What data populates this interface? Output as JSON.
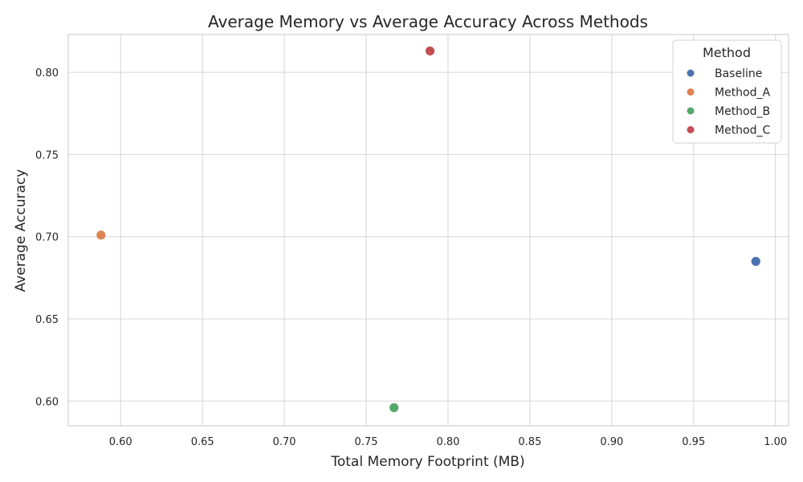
{
  "chart_data": {
    "type": "scatter",
    "title": "Average Memory vs Average Accuracy Across Methods",
    "xlabel": "Total Memory Footprint (MB)",
    "ylabel": "Average Accuracy",
    "xlim": [
      0.568,
      1.008
    ],
    "ylim": [
      0.585,
      0.823
    ],
    "xticks": [
      0.6,
      0.65,
      0.7,
      0.75,
      0.8,
      0.85,
      0.9,
      0.95,
      1.0
    ],
    "xtick_labels": [
      "0.60",
      "0.65",
      "0.70",
      "0.75",
      "0.80",
      "0.85",
      "0.90",
      "0.95",
      "1.00"
    ],
    "yticks": [
      0.6,
      0.65,
      0.7,
      0.75,
      0.8
    ],
    "ytick_labels": [
      "0.60",
      "0.65",
      "0.70",
      "0.75",
      "0.80"
    ],
    "grid": true,
    "legend": {
      "title": "Method",
      "position": "top-right"
    },
    "series": [
      {
        "name": "Baseline",
        "color": "#4c72b0",
        "x": [
          0.988
        ],
        "y": [
          0.685
        ]
      },
      {
        "name": "Method_A",
        "color": "#dd8452",
        "x": [
          0.588
        ],
        "y": [
          0.701
        ]
      },
      {
        "name": "Method_B",
        "color": "#55a868",
        "x": [
          0.767
        ],
        "y": [
          0.596
        ]
      },
      {
        "name": "Method_C",
        "color": "#c44e52",
        "x": [
          0.789
        ],
        "y": [
          0.813
        ]
      }
    ]
  }
}
